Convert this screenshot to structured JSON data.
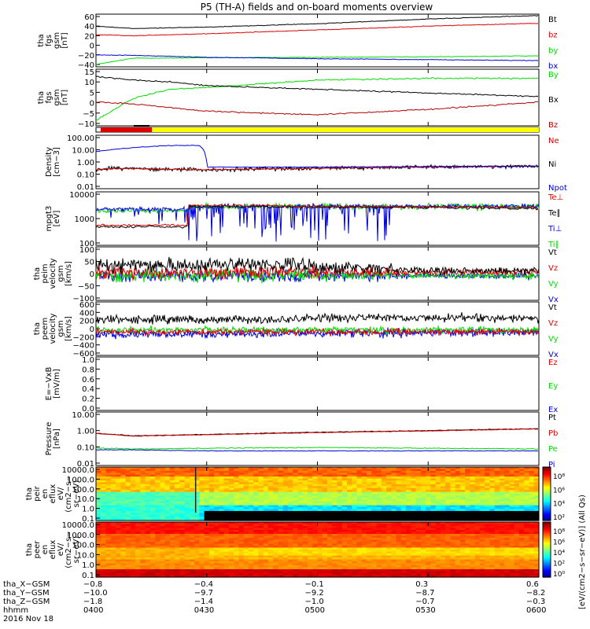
{
  "title": "P5 (TH-A) fields and on-board moments overview",
  "colors": {
    "black": "#000000",
    "red": "#dd0000",
    "green": "#00dd00",
    "blue": "#0000dd",
    "yellow": "#ffff00",
    "darkred": "#b00000"
  },
  "panels": [
    {
      "key": "p1",
      "ylabel": [
        "tha",
        "fgs",
        "gsm",
        "[nT]"
      ],
      "yticks": [
        "60",
        "40",
        "20",
        "0",
        "−20",
        "−40"
      ],
      "legend": [
        {
          "text": "Bt",
          "color": "black"
        },
        {
          "text": "bz",
          "color": "red"
        },
        {
          "text": "by",
          "color": "green"
        },
        {
          "text": "bx",
          "color": "blue"
        }
      ]
    },
    {
      "key": "p2",
      "ylabel": [
        "tha",
        "fgs",
        "gsm",
        "[nT]"
      ],
      "yticks": [
        "15",
        "10",
        "5",
        "0",
        "−5",
        "−10"
      ],
      "legend": [
        {
          "text": "By",
          "color": "green"
        },
        {
          "text": "Bx",
          "color": "black"
        },
        {
          "text": "Bz",
          "color": "darkred"
        }
      ]
    },
    {
      "key": "bar",
      "ylabel": [],
      "yticks": [],
      "legend": []
    },
    {
      "key": "p3",
      "ylabel": [
        "Density",
        "[cm−3]"
      ],
      "yticks": [
        "100.00",
        "10.00",
        "1.00",
        "0.10",
        "0.01"
      ],
      "legend": [
        {
          "text": "Ne",
          "color": "red"
        },
        {
          "text": "Ni",
          "color": "black"
        },
        {
          "text": "Npot",
          "color": "blue"
        }
      ]
    },
    {
      "key": "p4",
      "ylabel": [
        "mpgt3",
        "[eV]"
      ],
      "yticks": [
        "10000",
        "1000",
        "100"
      ],
      "legend": [
        {
          "text": "Te⊥",
          "color": "red"
        },
        {
          "text": "Te∥",
          "color": "black"
        },
        {
          "text": "Ti⊥",
          "color": "blue"
        },
        {
          "text": "Ti∥",
          "color": "green"
        }
      ]
    },
    {
      "key": "p5",
      "ylabel": [
        "tha",
        "peim",
        "velocity",
        "gsm",
        "[km/s]"
      ],
      "yticks": [
        "100",
        "50",
        "0",
        "−50",
        "−100"
      ],
      "legend": [
        {
          "text": "Vt",
          "color": "black"
        },
        {
          "text": "Vz",
          "color": "red"
        },
        {
          "text": "Vy",
          "color": "green"
        },
        {
          "text": "Vx",
          "color": "blue"
        }
      ]
    },
    {
      "key": "p6",
      "ylabel": [
        "tha",
        "peem",
        "velocity",
        "gsm",
        "[km/s]"
      ],
      "yticks": [
        "600",
        "400",
        "200",
        "0",
        "−200",
        "−400",
        "−600"
      ],
      "legend": [
        {
          "text": "Vt",
          "color": "black"
        },
        {
          "text": "Vz",
          "color": "red"
        },
        {
          "text": "Vy",
          "color": "green"
        },
        {
          "text": "Vx",
          "color": "blue"
        }
      ]
    },
    {
      "key": "p7",
      "ylabel": [
        "E=−VxB",
        "[mV/m]"
      ],
      "yticks": [
        "1.0",
        "0.8",
        "0.6",
        "0.4",
        "0.2",
        "0.0"
      ],
      "legend": [
        {
          "text": "Ez",
          "color": "red"
        },
        {
          "text": "Ey",
          "color": "green"
        },
        {
          "text": "Ex",
          "color": "blue"
        }
      ]
    },
    {
      "key": "p8",
      "ylabel": [
        "Pressure",
        "[nPa]"
      ],
      "yticks": [
        "10.00",
        "1.00",
        "0.10",
        "0.01"
      ],
      "legend": [
        {
          "text": "Pt",
          "color": "black"
        },
        {
          "text": "Pb",
          "color": "red"
        },
        {
          "text": "Pe",
          "color": "green"
        },
        {
          "text": "Pi",
          "color": "blue"
        }
      ]
    },
    {
      "key": "p9",
      "ylabel": [
        "tha",
        "peir",
        "en",
        "eflux",
        "eV/",
        "(cm2−s−",
        "sr−eV)"
      ],
      "yticks": [
        "10000.0",
        "1000.0",
        "100.0",
        "10.0",
        "1.0",
        "0.1"
      ],
      "legend": []
    },
    {
      "key": "p10",
      "ylabel": [
        "tha",
        "peer",
        "en",
        "eflux",
        "eV/",
        "(cm2−s−",
        "sr−eV)"
      ],
      "yticks": [
        "10000.0",
        "1000.0",
        "100.0",
        "10.0",
        "1.0",
        "0.1"
      ],
      "legend": []
    }
  ],
  "colorbar": {
    "title": "[eV/(cm2−s−sr−eV)] (All Qs)",
    "ticks_top": [
      "10⁸",
      "10⁶",
      "10⁴",
      "10²"
    ],
    "ticks_bottom": [
      "10⁸",
      "10⁶",
      "10⁴",
      "10²",
      "10⁰"
    ]
  },
  "ephemeris": {
    "rows": [
      {
        "label": "tha_X−GSM",
        "values": [
          "−0.8",
          "−0.4",
          "−0.1",
          "0.3",
          "0.6"
        ]
      },
      {
        "label": "tha_Y−GSM",
        "values": [
          "−10.0",
          "−9.7",
          "−9.2",
          "−8.7",
          "−8.2"
        ]
      },
      {
        "label": "tha_Z−GSM",
        "values": [
          "−1.8",
          "−1.4",
          "−1.0",
          "−0.7",
          "−0.3"
        ]
      },
      {
        "label": "hhmm",
        "values": [
          "0400",
          "0430",
          "0500",
          "0530",
          "0600"
        ]
      }
    ],
    "date": "2016 Nov 18"
  },
  "chart_data": {
    "type": "line",
    "title": "P5 (TH-A) fields and on-board moments overview",
    "x_ticks": [
      "0400",
      "0430",
      "0500",
      "0530",
      "0600"
    ],
    "date": "2016 Nov 18",
    "series": [
      {
        "panel": "p1",
        "name": "Bt",
        "x": [
          "0400",
          "0410",
          "0430",
          "0500",
          "0530",
          "0600"
        ],
        "values": [
          40,
          35,
          38,
          45,
          55,
          62
        ]
      },
      {
        "panel": "p1",
        "name": "bz",
        "x": [
          "0400",
          "0410",
          "0430",
          "0500",
          "0530",
          "0600"
        ],
        "values": [
          22,
          20,
          24,
          32,
          40,
          46
        ]
      },
      {
        "panel": "p1",
        "name": "by",
        "x": [
          "0400",
          "0410",
          "0430",
          "0500",
          "0530",
          "0600"
        ],
        "values": [
          -40,
          -27,
          -26,
          -25,
          -24,
          -22
        ]
      },
      {
        "panel": "p1",
        "name": "bx",
        "x": [
          "0400",
          "0410",
          "0430",
          "0500",
          "0530",
          "0600"
        ],
        "values": [
          -20,
          -21,
          -25,
          -28,
          -30,
          -32
        ]
      },
      {
        "panel": "p2",
        "name": "By",
        "x": [
          "0400",
          "0410",
          "0420",
          "0430",
          "0500",
          "0530",
          "0600"
        ],
        "values": [
          -12,
          0,
          5,
          6,
          10,
          11,
          11
        ]
      },
      {
        "panel": "p2",
        "name": "Bx",
        "x": [
          "0400",
          "0410",
          "0420",
          "0430",
          "0500",
          "0530",
          "0600"
        ],
        "values": [
          12,
          10,
          9,
          7,
          5,
          3,
          1
        ]
      },
      {
        "panel": "p2",
        "name": "Bz",
        "x": [
          "0400",
          "0410",
          "0420",
          "0430",
          "0500",
          "0530",
          "0600"
        ],
        "values": [
          -2,
          -3,
          -5,
          -7,
          -9,
          -6,
          -2
        ]
      },
      {
        "panel": "p3",
        "name": "Ne",
        "x": [
          "0400",
          "0405",
          "0430",
          "0500",
          "0530",
          "0600"
        ],
        "values": [
          0.3,
          0.4,
          0.3,
          0.4,
          0.5,
          0.6
        ]
      },
      {
        "panel": "p3",
        "name": "Npot",
        "x": [
          "0400",
          "0420",
          "0428",
          "0430",
          "0500",
          "0530",
          "0600"
        ],
        "values": [
          8,
          25,
          25,
          0.5,
          0.5,
          0.55,
          0.6
        ]
      },
      {
        "panel": "p8",
        "name": "Pb",
        "x": [
          "0400",
          "0410",
          "0430",
          "0500",
          "0530",
          "0600"
        ],
        "values": [
          0.7,
          0.5,
          0.6,
          0.8,
          1.0,
          1.3
        ]
      },
      {
        "panel": "p8",
        "name": "Pe",
        "x": [
          "0400",
          "0410",
          "0430",
          "0500",
          "0530",
          "0600"
        ],
        "values": [
          0.1,
          0.09,
          0.1,
          0.11,
          0.1,
          0.09
        ]
      },
      {
        "panel": "p8",
        "name": "Pi",
        "x": [
          "0400",
          "0410",
          "0430",
          "0500",
          "0530",
          "0600"
        ],
        "values": [
          0.08,
          0.08,
          0.07,
          0.07,
          0.07,
          0.07
        ]
      }
    ]
  }
}
